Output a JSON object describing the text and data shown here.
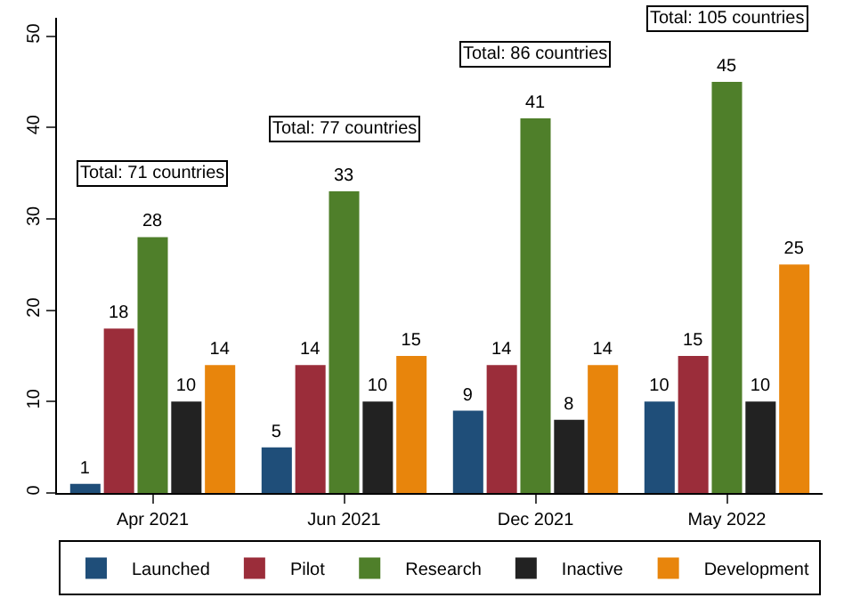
{
  "chart_data": {
    "type": "bar",
    "categories": [
      "Apr 2021",
      "Jun 2021",
      "Dec 2021",
      "May 2022"
    ],
    "series": [
      {
        "name": "Launched",
        "color": "#1f4e79",
        "values": [
          1,
          5,
          9,
          10
        ]
      },
      {
        "name": "Pilot",
        "color": "#9b2d3a",
        "values": [
          18,
          14,
          14,
          15
        ]
      },
      {
        "name": "Research",
        "color": "#4f7f2a",
        "values": [
          28,
          33,
          41,
          45
        ]
      },
      {
        "name": "Inactive",
        "color": "#222222",
        "values": [
          10,
          10,
          8,
          10
        ]
      },
      {
        "name": "Development",
        "color": "#e8850c",
        "values": [
          14,
          15,
          14,
          25
        ]
      }
    ],
    "ylim": [
      0,
      52
    ],
    "yticks": [
      0,
      10,
      20,
      30,
      40,
      50
    ],
    "legend": "bottom",
    "data_labels": true,
    "annotations": [
      "Total: 71 countries",
      "Total: 77 countries",
      "Total: 86 countries",
      "Total: 105 countries"
    ]
  }
}
